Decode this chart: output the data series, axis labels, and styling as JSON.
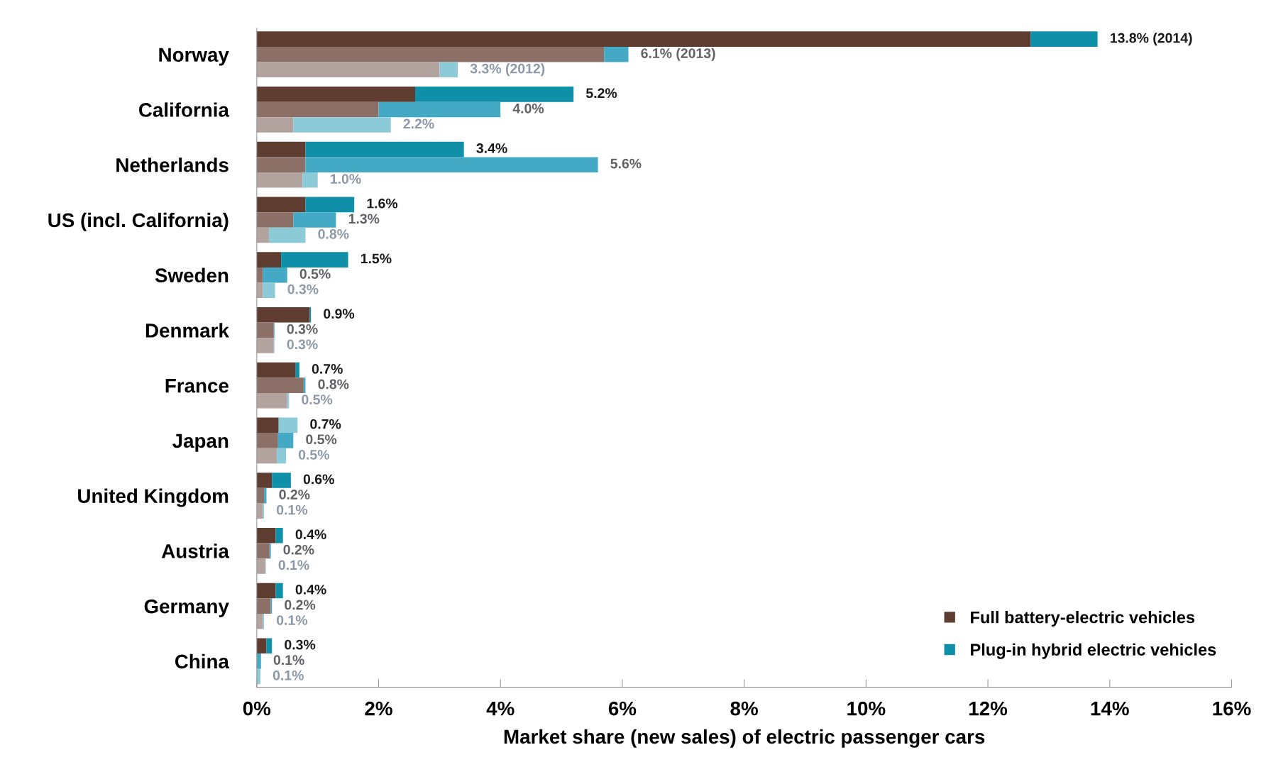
{
  "chart_data": {
    "type": "bar",
    "orientation": "horizontal",
    "stacked": true,
    "xlabel": "Market share (new sales) of electric passenger cars",
    "categories": [
      null,
      "Norway",
      null,
      null,
      "California",
      null,
      null,
      "Netherlands",
      null,
      null,
      "US (incl. California)",
      null,
      null,
      "Sweden",
      null,
      null,
      "Denmark",
      null,
      null,
      "France",
      null,
      null,
      "Japan",
      null,
      null,
      "United Kingdom",
      null,
      null,
      "Austria",
      null,
      null,
      "Germany",
      null,
      null,
      "China",
      null
    ],
    "series": [
      {
        "name": "Full battery-electric vehicles",
        "color": "#5e3c30",
        "colors": [
          "#5e3c30",
          "#8c7068",
          "#b3a39e",
          "#5e3c30",
          "#8c7068",
          "#b3a39e",
          "#5e3c30",
          "#8c7068",
          "#b3a39e",
          "#5e3c30",
          "#8c7068",
          "#b3a39e",
          "#5e3c30",
          "#8c7068",
          "#b3a39e",
          "#5e3c30",
          "#8c7068",
          "#b3a39e",
          "#5e3c30",
          "#8c7068",
          "#b3a39e",
          "#5e3c30",
          "#8c7068",
          "#b3a39e",
          "#5e3c30",
          "#8c7068",
          "#b3a39e",
          "#5e3c30",
          "#8c7068",
          "#b3a39e",
          "#5e3c30",
          "#8c7068",
          "#b3a39e",
          "#5e3c30",
          "#8c7068",
          "#b3a39e"
        ],
        "values": [
          12.7,
          5.7,
          3.0,
          2.6,
          2.0,
          0.6,
          0.8,
          0.8,
          0.75,
          0.8,
          0.6,
          0.2,
          0.4,
          0.1,
          0.1,
          0.87,
          0.28,
          0.28,
          0.64,
          0.77,
          0.5,
          0.36,
          0.35,
          0.33,
          0.25,
          0.12,
          0.1,
          0.31,
          0.21,
          0.14,
          0.31,
          0.23,
          0.1,
          0.16,
          null,
          null
        ]
      },
      {
        "name": "Plug-in hybrid electric vehicles",
        "color": "#0f8fa8",
        "colors": [
          "#0f8fa8",
          "#44a9c4",
          "#8dcad8",
          "#0f8fa8",
          "#44a9c4",
          "#8dcad8",
          "#0f8fa8",
          "#44a9c4",
          "#8dcad8",
          "#0f8fa8",
          "#44a9c4",
          "#8dcad8",
          "#0f8fa8",
          "#44a9c4",
          "#8dcad8",
          "#0f8fa8",
          "#44a9c4",
          "#8dcad8",
          "#0f8fa8",
          "#44a9c4",
          "#8dcad8",
          "#8dcad8",
          "#44a9c4",
          "#8dcad8",
          "#0f8fa8",
          "#44a9c4",
          "#8dcad8",
          "#0f8fa8",
          "#44a9c4",
          "#8dcad8",
          "#0f8fa8",
          "#44a9c4",
          "#8dcad8",
          "#0f8fa8",
          "#44a9c4",
          "#8dcad8"
        ],
        "values": [
          1.1,
          0.4,
          0.3,
          2.6,
          2.0,
          1.6,
          2.6,
          4.8,
          0.25,
          0.8,
          0.7,
          0.6,
          1.1,
          0.4,
          0.2,
          0.02,
          0.01,
          0.01,
          0.06,
          0.03,
          0.03,
          0.31,
          0.25,
          0.15,
          0.31,
          0.04,
          0.02,
          0.12,
          0.02,
          0.01,
          0.12,
          0.02,
          0.02,
          0.09,
          0.07,
          0.06
        ]
      }
    ],
    "totals": [
      "13.8% (2014)",
      "6.1% (2013)",
      "3.3% (2012)",
      "5.2%",
      "4.0%",
      "2.2%",
      "3.4%",
      "5.6%",
      "1.0%",
      "1.6%",
      "1.3%",
      "0.8%",
      "1.5%",
      "0.5%",
      "0.3%",
      "0.9%",
      "0.3%",
      "0.3%",
      "0.7%",
      "0.8%",
      "0.5%",
      "0.7%",
      "0.5%",
      "0.5%",
      "0.6%",
      "0.2%",
      "0.1%",
      "0.4%",
      "0.2%",
      "0.1%",
      "0.4%",
      "0.2%",
      "0.1%",
      "0.3%",
      "0.1%",
      "0.1%"
    ],
    "xlim": [
      0,
      16
    ],
    "xticks": [
      {
        "value": 0,
        "label": "0%"
      },
      {
        "value": 2,
        "label": "2%"
      },
      {
        "value": 4,
        "label": "4%"
      },
      {
        "value": 6,
        "label": "6%"
      },
      {
        "value": 8,
        "label": "8%"
      },
      {
        "value": 10,
        "label": "10%"
      },
      {
        "value": 12,
        "label": "12%"
      },
      {
        "value": 14,
        "label": "14%"
      },
      {
        "value": 16,
        "label": "16%"
      }
    ],
    "grid": false,
    "legend": "bottom right"
  }
}
